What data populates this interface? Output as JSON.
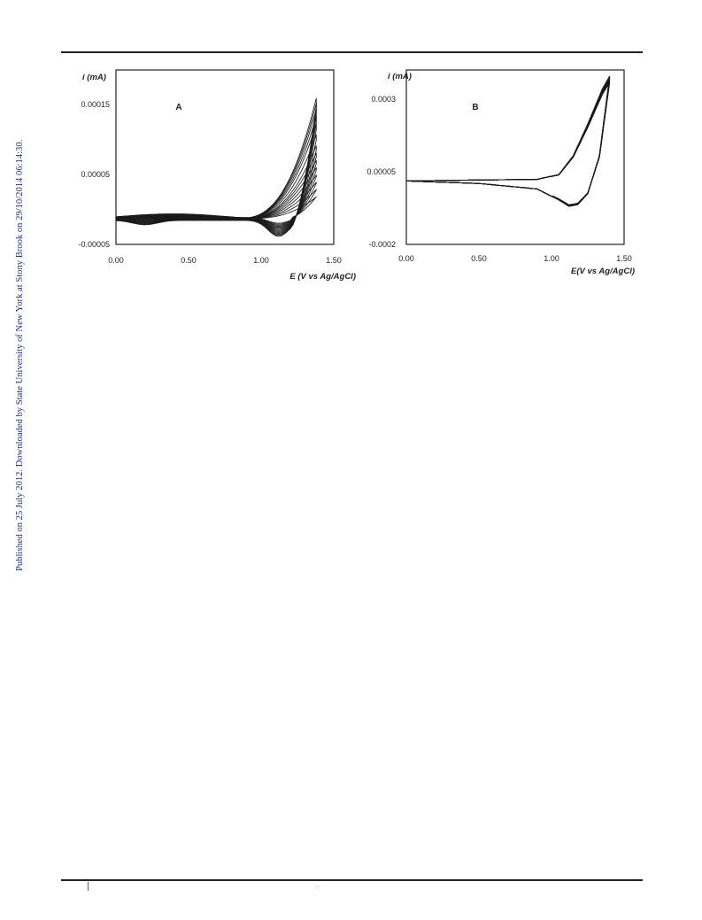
{
  "page": {
    "side_note": "Published on 25 July 2012. Downloaded by State University of New York at Stony Brook on 29/10/2014 06:14:30.",
    "footer_mark": "○"
  },
  "chart_data": [
    {
      "type": "line",
      "panel_label": "A",
      "ylabel": "i (mA)",
      "xlabel": "E (V vs Ag/AgCl)",
      "xlim": [
        0,
        1.5
      ],
      "ylim": [
        -5e-05,
        0.00019
      ],
      "x_ticks": [
        "0.00",
        "0.50",
        "1.00",
        "1.50"
      ],
      "y_ticks": [
        {
          "value": 0.00015,
          "label": "0.00015"
        },
        {
          "value": 5e-05,
          "label": "0.00005"
        },
        {
          "value": -5e-05,
          "label": "-0.00005"
        }
      ],
      "grid": false,
      "legend": "none",
      "series_count": 14,
      "cycle_peaks": [
        2e-05,
        3e-05,
        4e-05,
        5e-05,
        6e-05,
        7e-05,
        8e-05,
        9e-05,
        0.000105,
        0.00012,
        0.00013,
        0.00014,
        0.000148,
        0.000155
      ],
      "series": [
        {
          "x": [
            0,
            0.2,
            0.5,
            0.8,
            0.95,
            1.1,
            1.2,
            1.3,
            1.38
          ],
          "y": [
            -1.2e-05,
            -9e-06,
            -8e-06,
            -8e-06,
            -4e-06,
            1e-05,
            2.8e-05,
            8.5e-05,
            0.000155
          ]
        },
        {
          "x": [
            1.38,
            1.3,
            1.2,
            1.1,
            1.0,
            0.8,
            0.5,
            0.2,
            0
          ],
          "y": [
            0.000155,
            3.5e-05,
            -1.5e-05,
            -3.5e-05,
            -1.8e-05,
            -8e-06,
            -1e-05,
            -2e-05,
            -1.3e-05
          ]
        }
      ]
    },
    {
      "type": "line",
      "panel_label": "B",
      "ylabel": "i (mA)",
      "xlabel": "E(V vs Ag/AgCl)",
      "xlim": [
        0,
        1.5
      ],
      "ylim": [
        -0.0002,
        0.00035
      ],
      "x_ticks": [
        "0.00",
        "0.50",
        "1.00",
        "1.50"
      ],
      "y_ticks": [
        {
          "value": 0.0003,
          "label": "0.0003"
        },
        {
          "value": 5e-05,
          "label": "0.00005"
        },
        {
          "value": -0.0002,
          "label": "-0.0002"
        }
      ],
      "grid": false,
      "legend": "none",
      "series_count": 8,
      "series": [
        {
          "x": [
            0,
            0.5,
            0.9,
            1.05,
            1.15,
            1.25,
            1.35,
            1.4
          ],
          "y": [
            0,
            3e-06,
            5e-06,
            2e-05,
            8e-05,
            0.00018,
            0.00029,
            0.00033
          ]
        },
        {
          "x": [
            1.4,
            1.33,
            1.25,
            1.18,
            1.12,
            1.05,
            0.9,
            0.5,
            0
          ],
          "y": [
            0.00033,
            8e-05,
            -4e-05,
            -7.5e-05,
            -8e-05,
            -6e-05,
            -2.5e-05,
            -8e-06,
            0
          ]
        }
      ]
    }
  ]
}
